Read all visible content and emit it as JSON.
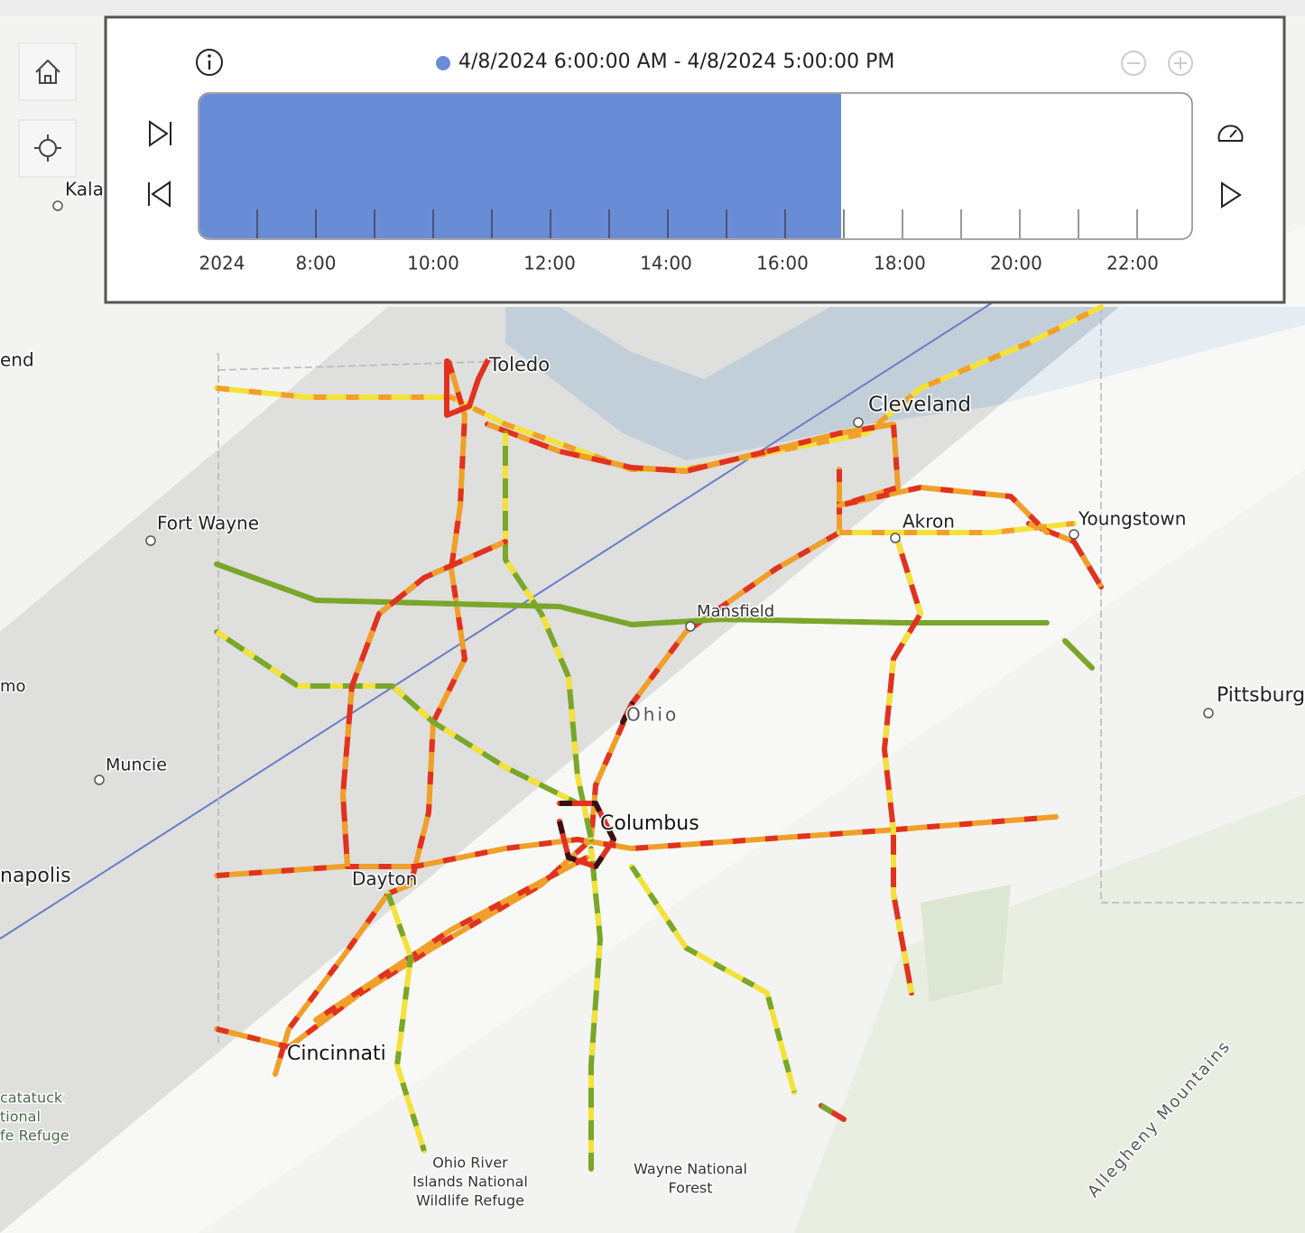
{
  "time_slider": {
    "extent_label": "4/8/2024 6:00:00 AM - 4/8/2024 5:00:00 PM",
    "ticks": [
      "2024",
      "8:00",
      "10:00",
      "12:00",
      "14:00",
      "16:00",
      "18:00",
      "20:00",
      "22:00"
    ]
  },
  "map_labels": [
    "Kala",
    "end",
    "Toledo",
    "Cleveland",
    "Fort Wayne",
    "Akron",
    "Youngstown",
    "Mansfield",
    "Ohio",
    "mo",
    "Pittsburgh",
    "Muncie",
    "Columbus",
    "napolis",
    "Dayton",
    "Cincinnati",
    "catatuck",
    "tional",
    "fe Refuge",
    "Ohio River",
    "Islands National",
    "Wildlife Refuge",
    "Wayne National",
    "Forest",
    "Allegheny Mountains"
  ]
}
